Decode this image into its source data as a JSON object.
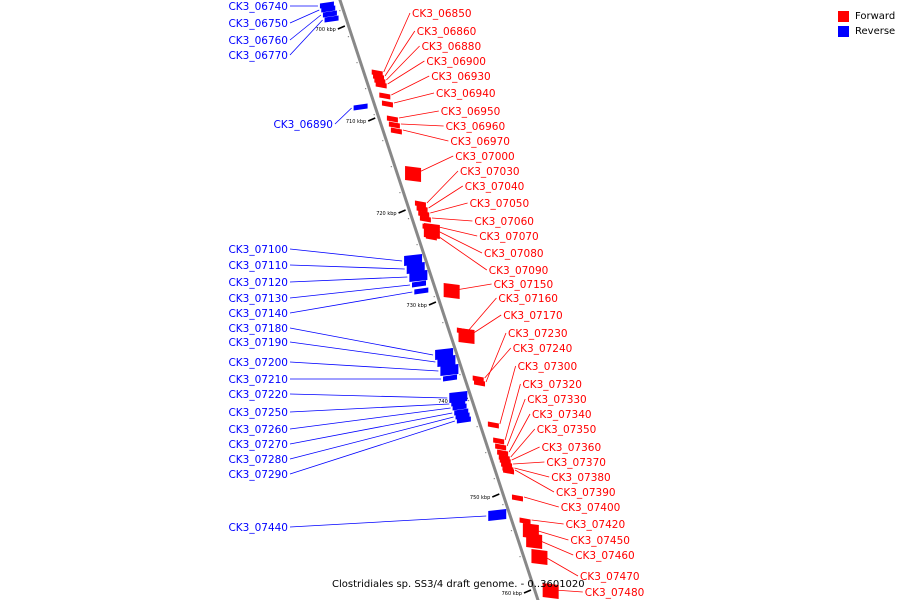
{
  "legend": {
    "forward_label": "Forward",
    "reverse_label": "Reverse",
    "forward_color": "#ff0000",
    "reverse_color": "#0000ff"
  },
  "caption": "Clostridiales sp. SS3/4 draft genome. - 0..3601020",
  "ticks": [
    "700 kbp",
    "710 kbp",
    "720 kbp",
    "730 kbp",
    "740 kbp",
    "750 kbp",
    "760 kbp"
  ],
  "reverse_genes": [
    "CK3_06740",
    "CK3_06750",
    "CK3_06760",
    "CK3_06770",
    "CK3_06890",
    "CK3_07100",
    "CK3_07110",
    "CK3_07120",
    "CK3_07130",
    "CK3_07140",
    "CK3_07180",
    "CK3_07190",
    "CK3_07200",
    "CK3_07210",
    "CK3_07220",
    "CK3_07250",
    "CK3_07260",
    "CK3_07270",
    "CK3_07280",
    "CK3_07290",
    "CK3_07440"
  ],
  "forward_genes": [
    "CK3_06850",
    "CK3_06860",
    "CK3_06880",
    "CK3_06900",
    "CK3_06930",
    "CK3_06940",
    "CK3_06950",
    "CK3_06960",
    "CK3_06970",
    "CK3_07000",
    "CK3_07030",
    "CK3_07040",
    "CK3_07050",
    "CK3_07060",
    "CK3_07070",
    "CK3_07080",
    "CK3_07090",
    "CK3_07150",
    "CK3_07160",
    "CK3_07170",
    "CK3_07230",
    "CK3_07240",
    "CK3_07300",
    "CK3_07320",
    "CK3_07330",
    "CK3_07340",
    "CK3_07350",
    "CK3_07360",
    "CK3_07370",
    "CK3_07380",
    "CK3_07390",
    "CK3_07400",
    "CK3_07420",
    "CK3_07450",
    "CK3_07460",
    "CK3_07470",
    "CK3_07480"
  ]
}
